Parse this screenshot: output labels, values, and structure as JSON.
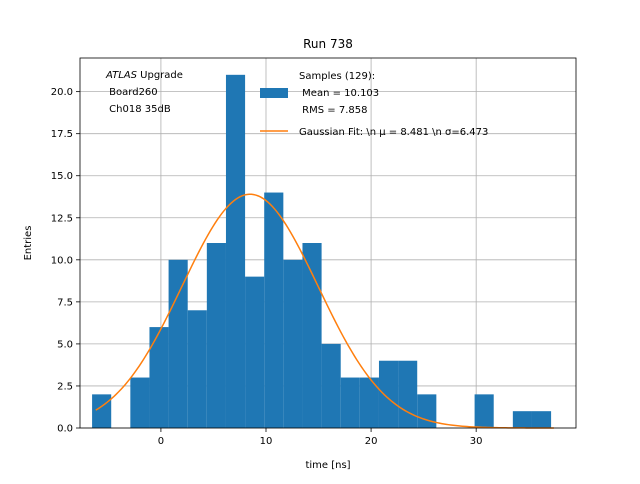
{
  "chart_data": {
    "type": "bar",
    "title": "Run 738",
    "xlabel": "time [ns]",
    "ylabel": "Entries",
    "xlim": [
      -7.7,
      39.5
    ],
    "ylim": [
      0,
      22.0
    ],
    "xticks": [
      0,
      10,
      20,
      30
    ],
    "yticks": [
      0.0,
      2.5,
      5.0,
      7.5,
      10.0,
      12.5,
      15.0,
      17.5,
      20.0
    ],
    "grid": true,
    "bin_width": 1.82,
    "bin_edges_start": -6.55,
    "counts": [
      2,
      0,
      3,
      6,
      10,
      7,
      11,
      21,
      9,
      14,
      10,
      11,
      5,
      3,
      3,
      4,
      4,
      2,
      0,
      0,
      2,
      0,
      1,
      1
    ],
    "gaussian": {
      "mu": 8.481,
      "sigma": 6.473,
      "peak": 13.9,
      "x_range": [
        -6.2,
        37.4
      ]
    },
    "annotation": {
      "italic": "ATLAS",
      "lines": [
        " Upgrade",
        " Board260",
        " Ch018 35dB"
      ]
    },
    "legend": {
      "position": "top-right",
      "hist_label_lines": [
        "Samples (129):",
        " Mean = 10.103",
        " RMS = 7.858"
      ],
      "fit_label": "Gaussian Fit: \\n $\\mu$ = 8.481 \\n $\\sigma$=6.473",
      "fit_label_display": "Gaussian Fit: \\n μ = 8.481 \\n σ=6.473"
    },
    "colors": {
      "hist": "#1f77b4",
      "fit": "#ff7f0e",
      "grid": "#b0b0b0"
    }
  }
}
